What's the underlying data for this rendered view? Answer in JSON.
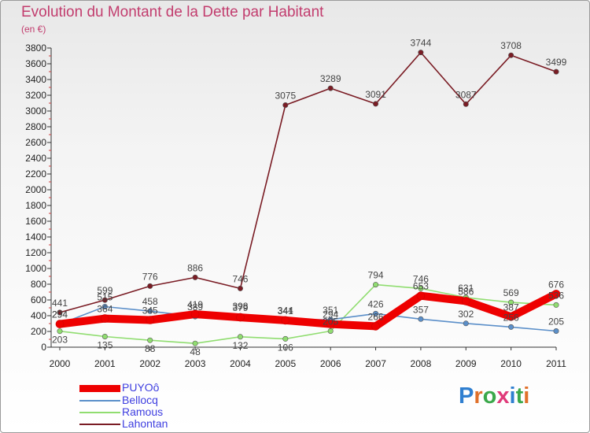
{
  "title": "Evolution du Montant de la Dette par Habitant",
  "unit": "(en €)",
  "brand": {
    "text": "Proxiti",
    "letter_colors": [
      "#2f7fd0",
      "#e0702a",
      "#3aa84a",
      "#e03a7a",
      "#2f7fd0",
      "#3aa84a",
      "#e0702a"
    ]
  },
  "chart_data": {
    "type": "line",
    "title": "Evolution du Montant de la Dette par Habitant",
    "ylabel": "(en €)",
    "xlabel": "",
    "categories": [
      "2000",
      "2001",
      "2002",
      "2003",
      "2004",
      "2005",
      "2006",
      "2007",
      "2008",
      "2009",
      "2010",
      "2011"
    ],
    "ylim": [
      0,
      3800
    ],
    "yticks": [
      0,
      200,
      400,
      600,
      800,
      1000,
      1200,
      1400,
      1600,
      1800,
      2000,
      2200,
      2400,
      2600,
      2800,
      3000,
      3200,
      3400,
      3600,
      3800
    ],
    "grid": false,
    "legend_position": "bottom-left",
    "series": [
      {
        "name": "PUYOô",
        "color": "#ee0000",
        "values": [
          294,
          364,
          345,
          419,
          379,
          341,
          294,
          266,
          653,
          586,
          387,
          676
        ]
      },
      {
        "name": "Bellocq",
        "color": "#5b8fc9",
        "values": [
          294,
          515,
          458,
          389,
          398,
          344,
          351,
          426,
          357,
          302,
          256,
          205
        ]
      },
      {
        "name": "Ramous",
        "color": "#90dd70",
        "values": [
          203,
          135,
          88,
          48,
          132,
          106,
          205,
          794,
          746,
          631,
          569,
          536
        ]
      },
      {
        "name": "Lahontan",
        "color": "#7a1c24",
        "values": [
          441,
          599,
          776,
          886,
          746,
          3075,
          3289,
          3091,
          3744,
          3087,
          3708,
          3499
        ]
      }
    ]
  }
}
